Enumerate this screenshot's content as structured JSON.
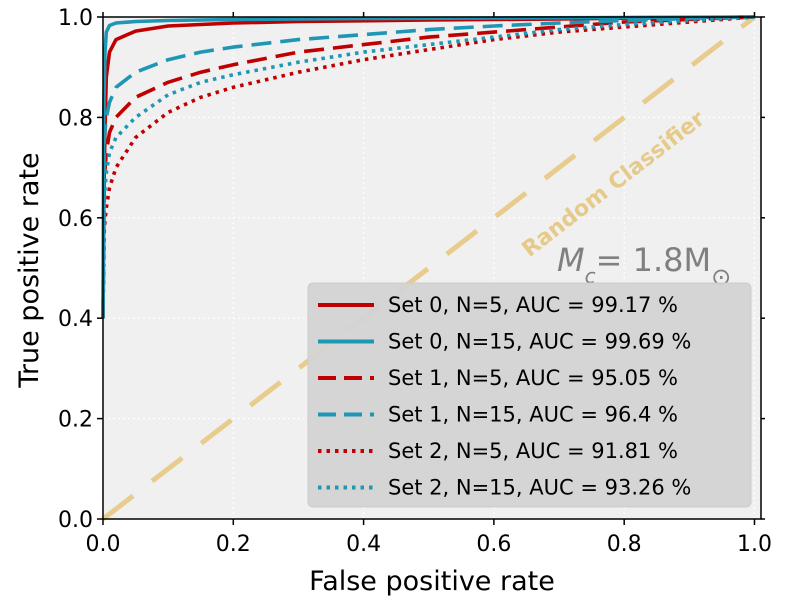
{
  "chart_data": {
    "type": "line",
    "title": "",
    "xlabel": "False positive rate",
    "ylabel": "True positive rate",
    "xlim": [
      0.0,
      1.01
    ],
    "ylim": [
      0.0,
      1.0
    ],
    "xticks": [
      "0.0",
      "0.2",
      "0.4",
      "0.6",
      "0.8",
      "1.0"
    ],
    "yticks": [
      "0.0",
      "0.2",
      "0.4",
      "0.6",
      "0.8",
      "1.0"
    ],
    "grid": true,
    "legend_position": "lower-right",
    "diagonal_label": "Random Classifier",
    "annotation": {
      "prefix": "M",
      "prefix_sub": "c",
      "middle": "= 1.8M",
      "suffix_symbol": "⊙"
    },
    "colors": {
      "red": "#c00000",
      "blue": "#1f97b4",
      "diagonal": "#e6c67e",
      "background": "#f0f0f0"
    },
    "series": [
      {
        "name": "Set 0, N=5, AUC = 99.17 %",
        "color": "#c00000",
        "style": "solid",
        "x": [
          0.0,
          0.001,
          0.003,
          0.005,
          0.01,
          0.02,
          0.05,
          0.1,
          0.2,
          0.3,
          0.5,
          0.7,
          0.9,
          1.0
        ],
        "y": [
          0.4,
          0.62,
          0.78,
          0.88,
          0.93,
          0.955,
          0.972,
          0.982,
          0.988,
          0.991,
          0.994,
          0.996,
          0.999,
          1.0
        ]
      },
      {
        "name": "Set 0, N=15, AUC = 99.69 %",
        "color": "#1f97b4",
        "style": "solid",
        "x": [
          0.0,
          0.001,
          0.003,
          0.005,
          0.01,
          0.02,
          0.05,
          0.1,
          0.2,
          0.4,
          0.6,
          0.8,
          1.0
        ],
        "y": [
          0.4,
          0.8,
          0.93,
          0.97,
          0.983,
          0.988,
          0.991,
          0.993,
          0.995,
          0.997,
          0.998,
          0.999,
          1.0
        ]
      },
      {
        "name": "Set 1, N=5, AUC = 95.05 %",
        "color": "#c00000",
        "style": "dashed",
        "x": [
          0.0,
          0.002,
          0.005,
          0.01,
          0.02,
          0.05,
          0.1,
          0.15,
          0.2,
          0.3,
          0.4,
          0.5,
          0.6,
          0.7,
          0.8,
          0.9,
          1.0
        ],
        "y": [
          0.4,
          0.68,
          0.73,
          0.77,
          0.8,
          0.84,
          0.87,
          0.89,
          0.905,
          0.93,
          0.945,
          0.96,
          0.97,
          0.98,
          0.99,
          0.995,
          1.0
        ]
      },
      {
        "name": "Set 1, N=15, AUC = 96.4 %",
        "color": "#1f97b4",
        "style": "dashed",
        "x": [
          0.0,
          0.002,
          0.005,
          0.01,
          0.02,
          0.05,
          0.1,
          0.15,
          0.2,
          0.3,
          0.4,
          0.5,
          0.6,
          0.7,
          0.8,
          0.9,
          1.0
        ],
        "y": [
          0.4,
          0.76,
          0.8,
          0.83,
          0.86,
          0.89,
          0.915,
          0.93,
          0.94,
          0.955,
          0.965,
          0.975,
          0.982,
          0.988,
          0.993,
          0.997,
          1.0
        ]
      },
      {
        "name": "Set 2, N=5, AUC = 91.81 %",
        "color": "#c00000",
        "style": "dotted",
        "x": [
          0.0,
          0.002,
          0.005,
          0.01,
          0.02,
          0.05,
          0.1,
          0.15,
          0.2,
          0.3,
          0.4,
          0.5,
          0.6,
          0.7,
          0.8,
          0.9,
          1.0
        ],
        "y": [
          0.4,
          0.58,
          0.62,
          0.66,
          0.7,
          0.76,
          0.81,
          0.84,
          0.86,
          0.89,
          0.915,
          0.935,
          0.955,
          0.97,
          0.98,
          0.99,
          1.0
        ]
      },
      {
        "name": "Set 2, N=15, AUC = 93.26 %",
        "color": "#1f97b4",
        "style": "dotted",
        "x": [
          0.0,
          0.002,
          0.005,
          0.01,
          0.02,
          0.05,
          0.1,
          0.15,
          0.2,
          0.3,
          0.4,
          0.5,
          0.6,
          0.7,
          0.8,
          0.9,
          1.0
        ],
        "y": [
          0.4,
          0.64,
          0.69,
          0.73,
          0.76,
          0.8,
          0.845,
          0.87,
          0.885,
          0.91,
          0.93,
          0.945,
          0.96,
          0.975,
          0.985,
          0.993,
          1.0
        ]
      }
    ]
  }
}
